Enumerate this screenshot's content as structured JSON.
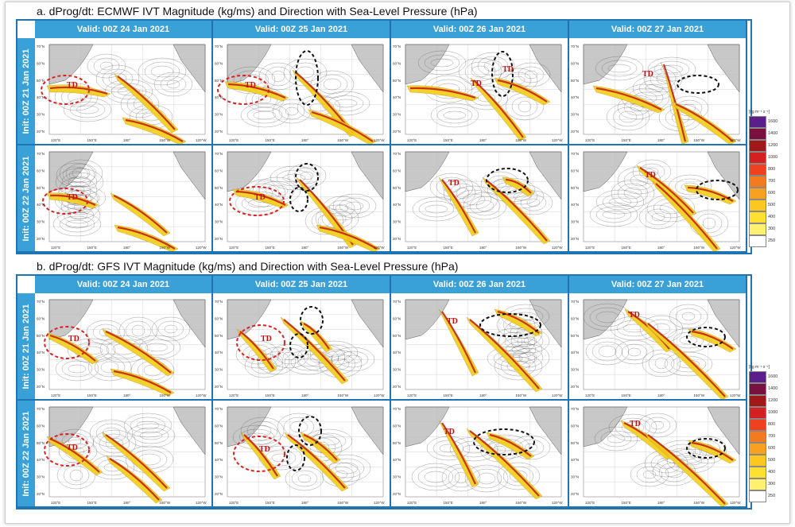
{
  "sections": [
    {
      "title": "a. dProg/dt: ECMWF IVT Magnitude (kg/ms) and Direction with Sea-Level Pressure (hPa)",
      "valid_headers": [
        "Valid: 00Z 24 Jan 2021",
        "Valid: 00Z 25 Jan 2021",
        "Valid: 00Z 26 Jan 2021",
        "Valid: 00Z 27 Jan 2021"
      ],
      "init_labels": [
        "Init: 00Z 21 Jan 2021",
        "Init: 00Z 22 Jan 2021"
      ]
    },
    {
      "title": "b. dProg/dt: GFS IVT Magnitude (kg/ms) and Direction with Sea-Level Pressure (hPa)",
      "valid_headers": [
        "Valid: 00Z 24 Jan 2021",
        "Valid: 00Z 25 Jan 2021",
        "Valid: 00Z 26 Jan 2021",
        "Valid: 00Z 27 Jan 2021"
      ],
      "init_labels": [
        "Init: 00Z 21 Jan 2021",
        "Init: 00Z 22 Jan 2021"
      ]
    }
  ],
  "colorbar": {
    "unit": "[kg m⁻¹ s⁻¹]",
    "levels": [
      "1600",
      "1400",
      "1200",
      "1000",
      "800",
      "700",
      "600",
      "500",
      "400",
      "300",
      "250"
    ],
    "colors": [
      "#5a1f8a",
      "#7a1040",
      "#a01818",
      "#d42020",
      "#f04020",
      "#f47a20",
      "#f8a020",
      "#fcc820",
      "#fde030",
      "#fff070",
      "#ffffff"
    ]
  },
  "map_labels": {
    "lat_ticks": [
      "70°N",
      "60°N",
      "50°N",
      "40°N",
      "30°N",
      "20°N"
    ],
    "lon_ticks": [
      "120°E",
      "150°E",
      "180°",
      "150°W",
      "120°W"
    ],
    "storm_label": "TD"
  },
  "map_colors": {
    "ivt_low": "#f2cf1a",
    "ivt_high": "#c01818",
    "slp_contour": "#555555",
    "ellipse_red": "#e02020",
    "ellipse_black": "#111111",
    "land": "#333333"
  }
}
